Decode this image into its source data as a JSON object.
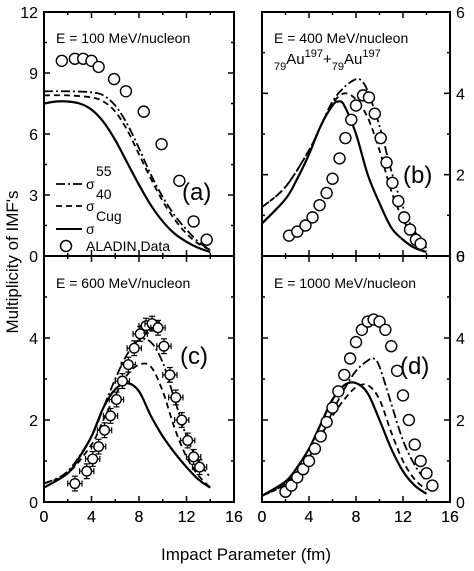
{
  "figure": {
    "ylabel": "Multiplicity of IMF's",
    "xlabel": "Impact Parameter (fm)",
    "legend": {
      "s55": "55",
      "s40": "40",
      "scug": "Cug",
      "data": "ALADIN Data"
    },
    "reaction": {
      "z1": "79",
      "a1": "Au",
      "m1": "197",
      "plus": "+",
      "z2": "79",
      "a2": "Au",
      "m2": "197"
    }
  },
  "colors": {
    "line": "#000000",
    "marker_stroke": "#000000",
    "marker_fill": "#ffffff"
  },
  "chart_data": [
    {
      "type": "line",
      "panel": "(a)",
      "annotation": "E = 100 MeV/nucleon",
      "xlim": [
        0,
        16
      ],
      "ylim": [
        0,
        12
      ],
      "xticks": [
        "0",
        "4",
        "8",
        "12",
        "16"
      ],
      "yticks": [
        "0",
        "3",
        "6",
        "9",
        "12"
      ],
      "yaxis_side": "left",
      "series": [
        {
          "name": "55",
          "style": "dashdot",
          "x": [
            0,
            2,
            4,
            5,
            6,
            7,
            8,
            9,
            10,
            11,
            12,
            13,
            14
          ],
          "y": [
            8.1,
            8.1,
            8.05,
            7.9,
            7.4,
            6.5,
            5.3,
            4.0,
            2.9,
            2.0,
            1.3,
            0.7,
            0.3
          ]
        },
        {
          "name": "40",
          "style": "dashed",
          "x": [
            0,
            2,
            4,
            5,
            6,
            7,
            8,
            9,
            10,
            11,
            12,
            13,
            14
          ],
          "y": [
            7.9,
            7.9,
            7.8,
            7.6,
            7.1,
            6.2,
            5.0,
            3.8,
            2.7,
            1.8,
            1.1,
            0.6,
            0.3
          ]
        },
        {
          "name": "Cug",
          "style": "solid",
          "x": [
            0,
            1,
            2,
            3,
            4,
            5,
            6,
            7,
            8,
            9,
            10,
            11,
            12,
            13,
            14
          ],
          "y": [
            7.5,
            7.6,
            7.6,
            7.5,
            7.2,
            6.6,
            5.7,
            4.6,
            3.5,
            2.5,
            1.7,
            1.1,
            0.7,
            0.4,
            0.2
          ]
        },
        {
          "name": "ALADIN Data",
          "style": "markers",
          "x": [
            1.5,
            2.6,
            3.3,
            4.0,
            4.6,
            5.9,
            6.9,
            8.4,
            9.9,
            11.4,
            12.6,
            13.7
          ],
          "y": [
            9.6,
            9.7,
            9.7,
            9.6,
            9.3,
            8.7,
            8.1,
            7.1,
            5.5,
            3.7,
            1.7,
            0.8
          ]
        }
      ]
    },
    {
      "type": "line",
      "panel": "(b)",
      "annotation": "E = 400 MeV/nucleon",
      "xlim": [
        0,
        16
      ],
      "ylim": [
        0,
        6
      ],
      "xticks": [
        "0",
        "4",
        "8",
        "12",
        "16"
      ],
      "yticks": [
        "0",
        "2",
        "4",
        "6"
      ],
      "yaxis_side": "right",
      "series": [
        {
          "name": "55",
          "style": "dashdot",
          "x": [
            0,
            2,
            4,
            5,
            6,
            7,
            8,
            8.5,
            9,
            10,
            11,
            12,
            13,
            14
          ],
          "y": [
            1.2,
            1.7,
            2.6,
            3.2,
            3.8,
            4.15,
            4.35,
            4.3,
            4.05,
            3.2,
            2.1,
            1.2,
            0.6,
            0.3
          ]
        },
        {
          "name": "40",
          "style": "dashed",
          "x": [
            0,
            2,
            4,
            5,
            6,
            7,
            8,
            9,
            10,
            11,
            12,
            13,
            14
          ],
          "y": [
            1.2,
            1.7,
            2.6,
            3.2,
            3.75,
            4.0,
            3.85,
            3.4,
            2.6,
            1.6,
            0.9,
            0.45,
            0.2
          ]
        },
        {
          "name": "Cug",
          "style": "solid",
          "x": [
            0,
            2,
            3,
            4,
            5,
            6,
            6.5,
            7,
            8,
            9,
            10,
            11,
            12,
            13,
            14
          ],
          "y": [
            0.8,
            1.4,
            1.9,
            2.5,
            3.2,
            3.7,
            3.8,
            3.7,
            3.0,
            2.0,
            1.3,
            0.7,
            0.4,
            0.2,
            0.1
          ]
        },
        {
          "name": "ALADIN Data",
          "style": "markers",
          "x": [
            2.3,
            3.0,
            3.7,
            4.3,
            4.9,
            5.5,
            6.0,
            6.6,
            7.1,
            7.6,
            8.0,
            8.6,
            9.1,
            9.6,
            10.1,
            10.6,
            11.1,
            11.6,
            12.1,
            12.6,
            13.1,
            13.5
          ],
          "y": [
            0.5,
            0.6,
            0.75,
            0.95,
            1.25,
            1.55,
            1.9,
            2.4,
            2.9,
            3.35,
            3.7,
            3.95,
            3.9,
            3.5,
            2.9,
            2.3,
            1.8,
            1.35,
            0.95,
            0.65,
            0.4,
            0.3
          ]
        }
      ]
    },
    {
      "type": "line",
      "panel": "(c)",
      "annotation": "E = 600 MeV/nucleon",
      "xlim": [
        0,
        16
      ],
      "ylim": [
        0,
        6
      ],
      "xticks": [
        "0",
        "4",
        "8",
        "12",
        "16"
      ],
      "yticks": [
        "0",
        "2",
        "4"
      ],
      "yaxis_side": "left",
      "series": [
        {
          "name": "55",
          "style": "dashdot",
          "x": [
            0,
            2,
            4,
            5,
            6,
            7,
            8,
            9,
            10,
            11,
            12,
            13,
            14
          ],
          "y": [
            0.45,
            0.75,
            1.6,
            2.3,
            3.0,
            3.6,
            3.95,
            3.9,
            3.4,
            2.5,
            1.6,
            1.0,
            0.6
          ]
        },
        {
          "name": "40",
          "style": "dashed",
          "x": [
            0,
            2,
            4,
            5,
            6,
            7,
            8,
            9,
            10,
            11,
            12,
            13,
            14
          ],
          "y": [
            0.45,
            0.7,
            1.4,
            2.0,
            2.6,
            3.1,
            3.35,
            3.3,
            2.7,
            1.8,
            1.1,
            0.65,
            0.35
          ]
        },
        {
          "name": "Cug",
          "style": "solid",
          "x": [
            0,
            2,
            3,
            4,
            5,
            6,
            7,
            8,
            9,
            10,
            11,
            12,
            13,
            14
          ],
          "y": [
            0.35,
            0.7,
            1.1,
            1.6,
            2.3,
            2.75,
            2.9,
            2.7,
            2.1,
            1.6,
            1.2,
            0.85,
            0.55,
            0.35
          ]
        },
        {
          "name": "ALADIN Data",
          "style": "markers_errorbars",
          "x": [
            2.6,
            3.6,
            4.1,
            4.6,
            5.1,
            5.6,
            6.1,
            6.6,
            7.1,
            7.6,
            8.1,
            8.6,
            9.1,
            9.6,
            10.1,
            10.6,
            11.1,
            11.6,
            12.1,
            12.6,
            13.1
          ],
          "y": [
            0.45,
            0.75,
            1.05,
            1.35,
            1.75,
            2.1,
            2.5,
            2.95,
            3.35,
            3.75,
            4.1,
            4.3,
            4.35,
            4.25,
            3.8,
            3.1,
            2.55,
            2.0,
            1.5,
            1.1,
            0.85
          ]
        }
      ]
    },
    {
      "type": "line",
      "panel": "(d)",
      "annotation": "E = 1000 MeV/nucleon",
      "xlim": [
        0,
        16
      ],
      "ylim": [
        0,
        6
      ],
      "xticks": [
        "0",
        "4",
        "8",
        "12",
        "16"
      ],
      "yticks": [
        "0",
        "2",
        "4",
        "6"
      ],
      "yaxis_side": "right",
      "series": [
        {
          "name": "55",
          "style": "dashdot",
          "x": [
            0,
            2,
            4,
            5,
            6,
            7,
            8,
            9,
            9.5,
            10,
            11,
            12,
            13,
            14
          ],
          "y": [
            0.15,
            0.45,
            1.1,
            1.6,
            2.2,
            2.75,
            3.2,
            3.45,
            3.5,
            3.3,
            2.4,
            1.5,
            0.9,
            0.5
          ]
        },
        {
          "name": "40",
          "style": "dashed",
          "x": [
            0,
            2,
            4,
            5,
            6,
            7,
            8,
            9,
            10,
            11,
            12,
            13,
            14
          ],
          "y": [
            0.15,
            0.45,
            1.1,
            1.6,
            2.1,
            2.5,
            2.8,
            2.85,
            2.5,
            1.7,
            1.0,
            0.55,
            0.3
          ]
        },
        {
          "name": "Cug",
          "style": "solid",
          "x": [
            0,
            2,
            3,
            4,
            5,
            6,
            7,
            8,
            9,
            10,
            11,
            12,
            13,
            14
          ],
          "y": [
            0.15,
            0.5,
            0.85,
            1.3,
            1.9,
            2.5,
            2.85,
            2.9,
            2.65,
            2.0,
            1.3,
            0.75,
            0.4,
            0.2
          ]
        },
        {
          "name": "ALADIN Data",
          "style": "markers",
          "x": [
            2.0,
            2.5,
            3.0,
            3.5,
            4.0,
            4.5,
            5.0,
            5.5,
            6.0,
            6.5,
            7.0,
            7.5,
            8.0,
            8.5,
            9.0,
            9.5,
            10.0,
            10.5,
            11.0,
            11.5,
            12.0,
            12.5,
            13.0,
            13.5,
            14.0,
            14.5
          ],
          "y": [
            0.25,
            0.4,
            0.6,
            0.8,
            1.0,
            1.3,
            1.6,
            1.95,
            2.3,
            2.7,
            3.1,
            3.5,
            3.9,
            4.2,
            4.4,
            4.45,
            4.4,
            4.2,
            3.8,
            3.2,
            2.6,
            2.0,
            1.4,
            1.0,
            0.7,
            0.4
          ]
        }
      ]
    }
  ]
}
